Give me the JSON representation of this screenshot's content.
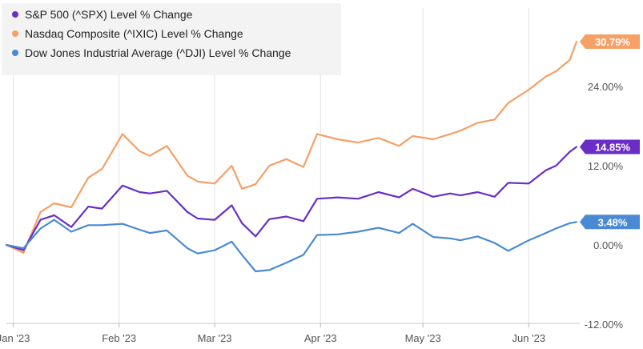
{
  "chart_data": {
    "type": "line",
    "title": "",
    "xlabel": "",
    "ylabel": "",
    "ylim": [
      -13,
      33
    ],
    "x_tick_labels": [
      "Jan '23",
      "Feb '23",
      "Mar '23",
      "Apr '23",
      "May '23",
      "Jun '23"
    ],
    "y_tick_labels": [
      "24.00%",
      "12.00%",
      "0.00%",
      "-12.00%"
    ],
    "y_ticks": [
      24,
      12,
      0,
      -12
    ],
    "grid": "vertical",
    "legend_position": "top-left",
    "series": [
      {
        "name": "S&P 500 (^SPX) Level % Change",
        "color": "#6a2ec6",
        "end_label": "14.85%",
        "x": [
          "2022-12-30",
          "2023-01-04",
          "2023-01-09",
          "2023-01-13",
          "2023-01-18",
          "2023-01-23",
          "2023-01-27",
          "2023-02-02",
          "2023-02-07",
          "2023-02-10",
          "2023-02-15",
          "2023-02-21",
          "2023-02-24",
          "2023-03-01",
          "2023-03-06",
          "2023-03-09",
          "2023-03-13",
          "2023-03-17",
          "2023-03-22",
          "2023-03-27",
          "2023-03-31",
          "2023-04-06",
          "2023-04-12",
          "2023-04-18",
          "2023-04-24",
          "2023-04-28",
          "2023-05-04",
          "2023-05-09",
          "2023-05-12",
          "2023-05-17",
          "2023-05-22",
          "2023-05-26",
          "2023-06-01",
          "2023-06-06",
          "2023-06-09",
          "2023-06-13",
          "2023-06-15"
        ],
        "y": [
          0.0,
          -0.8,
          3.8,
          4.5,
          2.7,
          5.8,
          5.5,
          9.0,
          8.0,
          7.8,
          8.2,
          5.0,
          4.0,
          3.8,
          6.0,
          3.3,
          1.3,
          3.9,
          4.3,
          3.6,
          7.0,
          7.2,
          7.0,
          8.0,
          7.2,
          8.5,
          7.3,
          7.8,
          7.5,
          8.0,
          7.3,
          9.4,
          9.3,
          11.3,
          12.0,
          14.1,
          14.85
        ]
      },
      {
        "name": "Nasdaq Composite (^IXIC) Level % Change",
        "color": "#f5a066",
        "end_label": "30.79%",
        "x": [
          "2022-12-30",
          "2023-01-04",
          "2023-01-09",
          "2023-01-13",
          "2023-01-18",
          "2023-01-23",
          "2023-01-27",
          "2023-02-02",
          "2023-02-07",
          "2023-02-10",
          "2023-02-15",
          "2023-02-21",
          "2023-02-24",
          "2023-03-01",
          "2023-03-06",
          "2023-03-09",
          "2023-03-13",
          "2023-03-17",
          "2023-03-22",
          "2023-03-27",
          "2023-03-31",
          "2023-04-06",
          "2023-04-12",
          "2023-04-18",
          "2023-04-24",
          "2023-04-28",
          "2023-05-04",
          "2023-05-09",
          "2023-05-12",
          "2023-05-17",
          "2023-05-22",
          "2023-05-26",
          "2023-06-01",
          "2023-06-06",
          "2023-06-09",
          "2023-06-13",
          "2023-06-15"
        ],
        "y": [
          0.0,
          -1.2,
          5.0,
          6.3,
          5.7,
          10.2,
          11.5,
          16.8,
          14.2,
          13.5,
          15.0,
          10.5,
          9.6,
          9.3,
          12.0,
          8.5,
          9.2,
          12.0,
          13.0,
          11.8,
          16.8,
          16.0,
          15.5,
          16.2,
          15.0,
          16.5,
          16.0,
          16.8,
          17.3,
          18.5,
          19.0,
          21.5,
          23.5,
          25.5,
          26.3,
          28.0,
          30.79
        ]
      },
      {
        "name": "Dow Jones Industrial Average (^DJI) Level % Change",
        "color": "#4a8ad4",
        "end_label": "3.48%",
        "x": [
          "2022-12-30",
          "2023-01-04",
          "2023-01-09",
          "2023-01-13",
          "2023-01-18",
          "2023-01-23",
          "2023-01-27",
          "2023-02-02",
          "2023-02-07",
          "2023-02-10",
          "2023-02-15",
          "2023-02-21",
          "2023-02-24",
          "2023-03-01",
          "2023-03-06",
          "2023-03-09",
          "2023-03-13",
          "2023-03-17",
          "2023-03-22",
          "2023-03-27",
          "2023-03-31",
          "2023-04-06",
          "2023-04-12",
          "2023-04-18",
          "2023-04-24",
          "2023-04-28",
          "2023-05-04",
          "2023-05-09",
          "2023-05-12",
          "2023-05-17",
          "2023-05-22",
          "2023-05-26",
          "2023-06-01",
          "2023-06-06",
          "2023-06-09",
          "2023-06-13",
          "2023-06-15"
        ],
        "y": [
          0.0,
          -0.5,
          2.5,
          3.8,
          2.0,
          3.0,
          3.0,
          3.2,
          2.3,
          1.8,
          2.2,
          -0.5,
          -1.3,
          -0.8,
          0.5,
          -1.5,
          -4.0,
          -3.8,
          -2.7,
          -1.5,
          1.5,
          1.6,
          2.0,
          2.6,
          1.8,
          3.2,
          1.2,
          1.0,
          0.7,
          1.3,
          0.3,
          -0.9,
          0.7,
          1.8,
          2.5,
          3.3,
          3.48
        ]
      }
    ]
  }
}
